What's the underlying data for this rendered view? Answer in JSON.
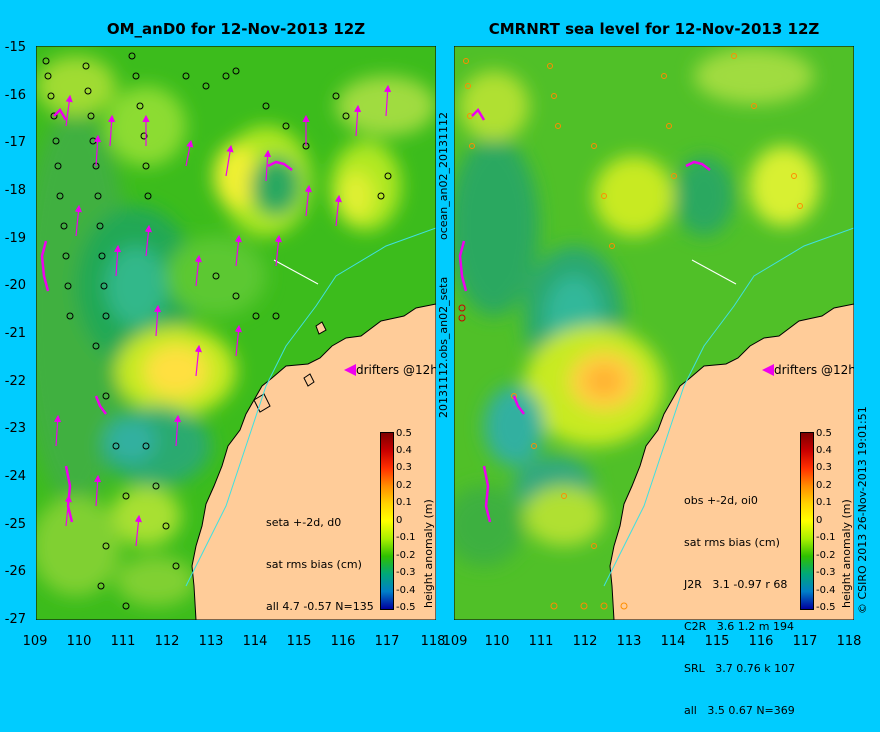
{
  "left_panel": {
    "title": "OM_anD0 for 12-Nov-2013 12Z",
    "drifters_label": "drifters @12h",
    "stats": [
      "seta +-2d, d0",
      "sat rms bias (cm)",
      "all 4.7 -0.57 N=135"
    ]
  },
  "right_panel": {
    "title": "CMRNRT sea level  for 12-Nov-2013 12Z",
    "drifters_label": "drifters @12h",
    "stats": [
      "obs +-2d, oi0",
      "sat rms bias (cm)",
      "J2R   3.1 -0.97 r 68",
      "C2R   3.6 1.2 m 194",
      "SRL   3.7 0.76 k 107",
      "all   3.5 0.67 N=369"
    ]
  },
  "y_ticks": [
    "-15",
    "-16",
    "-17",
    "-18",
    "-19",
    "-20",
    "-21",
    "-22",
    "-23",
    "-24",
    "-25",
    "-26",
    "-27"
  ],
  "x_ticks_left": [
    "109",
    "110",
    "111",
    "112",
    "113",
    "114",
    "115",
    "116",
    "117",
    "118"
  ],
  "x_ticks_right": [
    "109",
    "110",
    "111",
    "112",
    "113",
    "114",
    "115",
    "116",
    "117",
    "118"
  ],
  "side_label_1": "ocean_an02_20131112",
  "side_label_2": "20131112.obs_an02_seta",
  "copyright": "© CSIRO 2013   26-Nov-2013 19:01:51",
  "colorbar": {
    "label": "height anomaly (m)",
    "ticks": [
      "0.5",
      "0.4",
      "0.3",
      "0.2",
      "0.1",
      "0",
      "-0.1",
      "-0.2",
      "-0.3",
      "-0.4",
      "-0.5"
    ],
    "colors": [
      "#7f0000",
      "#c80000",
      "#ff3000",
      "#ff8c00",
      "#ffd200",
      "#ffff00",
      "#aaf000",
      "#2fc000",
      "#00a878",
      "#0080c8",
      "#0000a0"
    ]
  },
  "colors": {
    "background": "#00ccff",
    "land": "#ffcc99",
    "drifter": "#ee00ee"
  }
}
